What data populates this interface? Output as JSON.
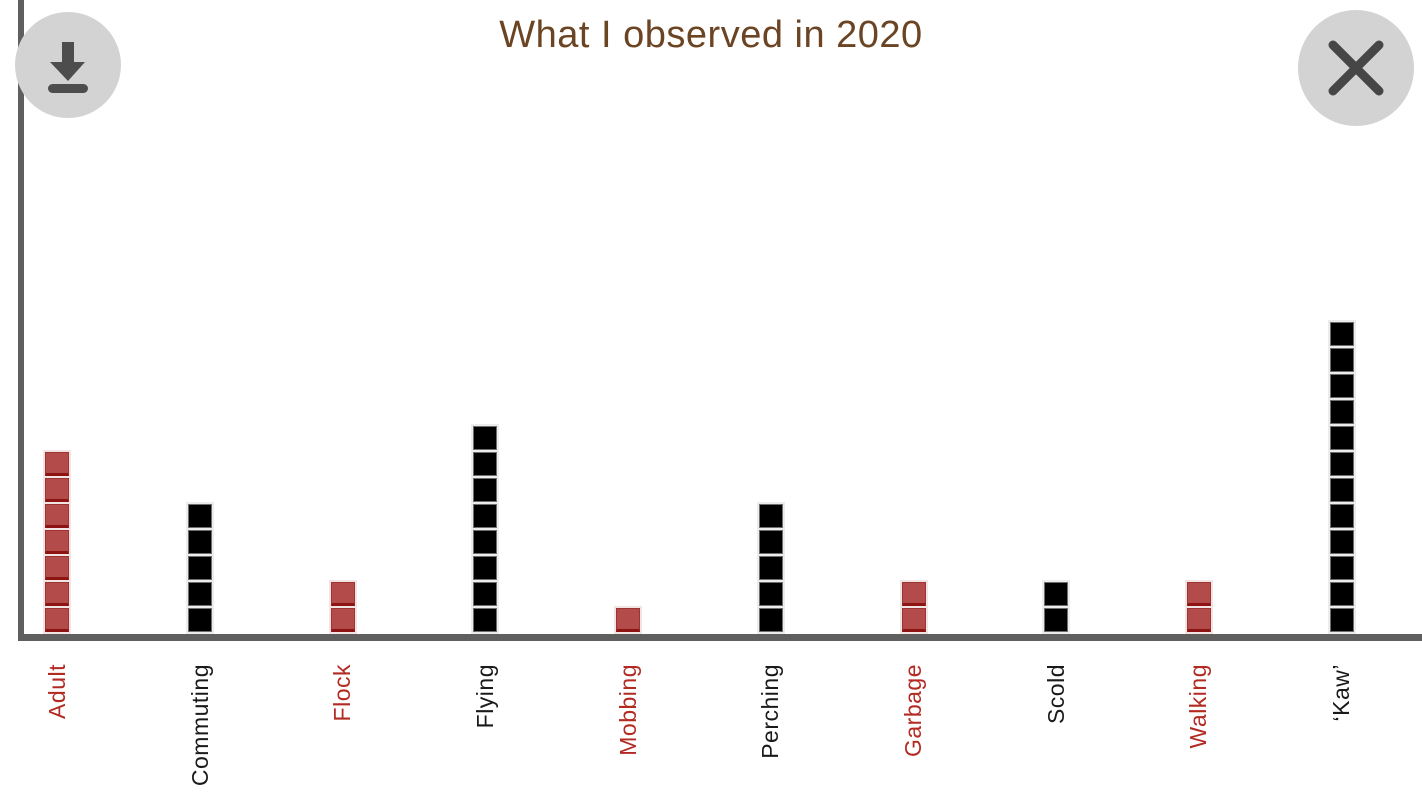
{
  "title": "What I observed in 2020",
  "toolbar": {
    "download_icon": "download-icon",
    "close_icon": "close-icon"
  },
  "colors": {
    "title": "#6b4423",
    "axis": "#5f5f5f",
    "button_bg": "#d3d3d3",
    "button_icon": "#4d4d4d",
    "red_square": "#b34b4b",
    "red_square_dark": "#8e1414",
    "black_square": "#000000",
    "red_label": "#b22a22",
    "black_label": "#1a1a1a"
  },
  "chart_data": {
    "type": "bar",
    "subtype": "pictograph-stacked-unit-squares",
    "title": "What I observed in 2020",
    "categories": [
      "Adult",
      "Commuting",
      "Flock",
      "Flying",
      "Mobbing",
      "Perching",
      "Garbage",
      "Scold",
      "Walking",
      "‘Kaw’"
    ],
    "values": [
      7,
      5,
      2,
      8,
      1,
      5,
      2,
      2,
      2,
      12
    ],
    "series_colors": [
      "red",
      "black",
      "red",
      "black",
      "red",
      "black",
      "red",
      "black",
      "red",
      "black"
    ],
    "unit_value": 1,
    "xlabel": "",
    "ylabel": "",
    "ylim": [
      0,
      13
    ],
    "grid": false,
    "legend_position": "none",
    "tick_label_rotation_deg": 90
  }
}
